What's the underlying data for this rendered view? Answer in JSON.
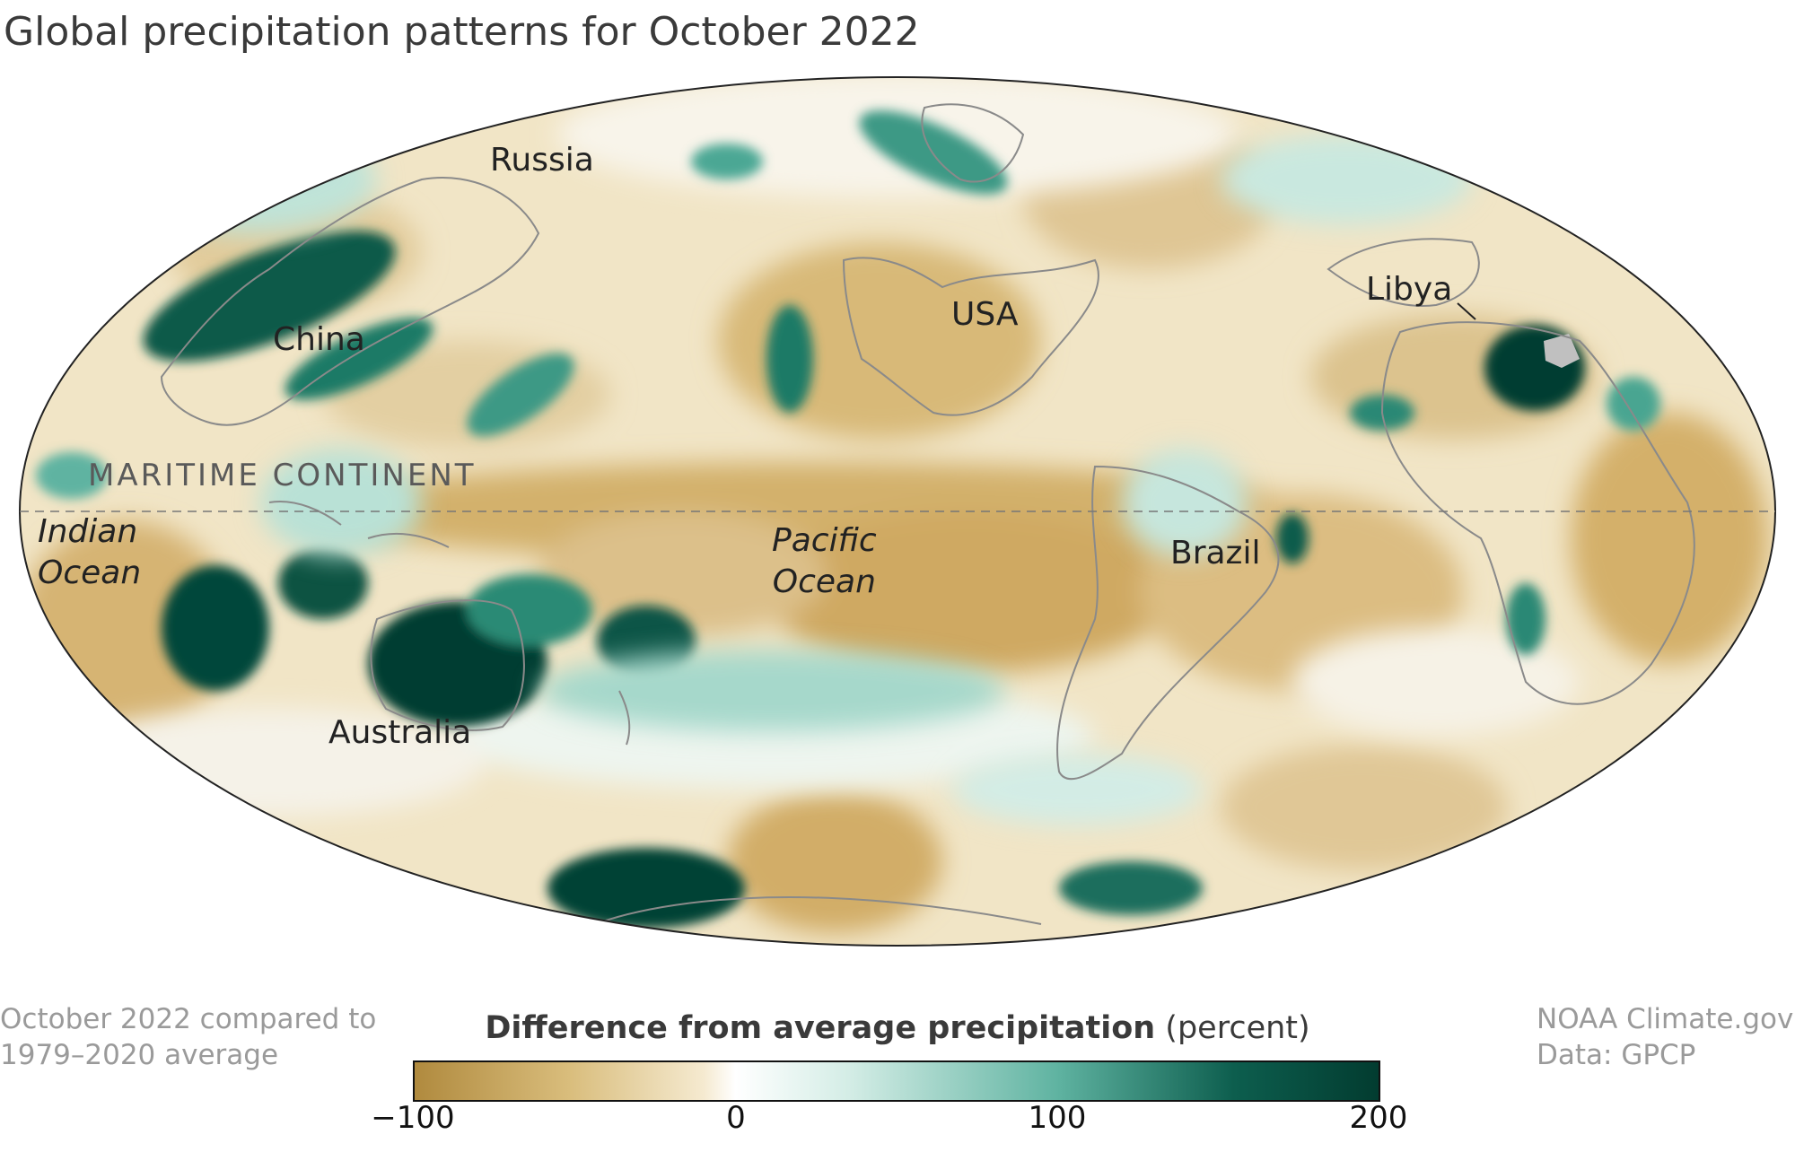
{
  "title": "Global precipitation patterns for October 2022",
  "labels": {
    "russia": "Russia",
    "china": "China",
    "usa": "USA",
    "libya": "Libya",
    "brazil": "Brazil",
    "australia": "Australia",
    "maritime_continent": "MARITIME CONTINENT",
    "indian_ocean_1": "Indian",
    "indian_ocean_2": "Ocean",
    "pacific_ocean_1": "Pacific",
    "pacific_ocean_2": "Ocean"
  },
  "footer": {
    "left_line1": "October 2022 compared to",
    "left_line2": "1979–2020 average",
    "right_line1": "NOAA Climate.gov",
    "right_line2": "Data: GPCP"
  },
  "legend": {
    "title_bold": "Difference from average precipitation",
    "title_unit": "(percent)",
    "ticks": [
      "−100",
      "0",
      "100",
      "200"
    ],
    "tick_values": [
      -100,
      0,
      100,
      200
    ],
    "colors": {
      "dry_strong": "#b08a3e",
      "dry_mid": "#d9bd7c",
      "dry_light": "#f5ead0",
      "neutral": "#ffffff",
      "wet_light": "#d4ede6",
      "wet_mid": "#5fb3a1",
      "wet_strong": "#0d5e4e",
      "wet_max": "#023c30"
    }
  },
  "map_colors": {
    "ocean_base": "#f0e2bd",
    "coast": "#8a8a8a",
    "equator": "#777777",
    "missing": "#c0c0c0"
  }
}
